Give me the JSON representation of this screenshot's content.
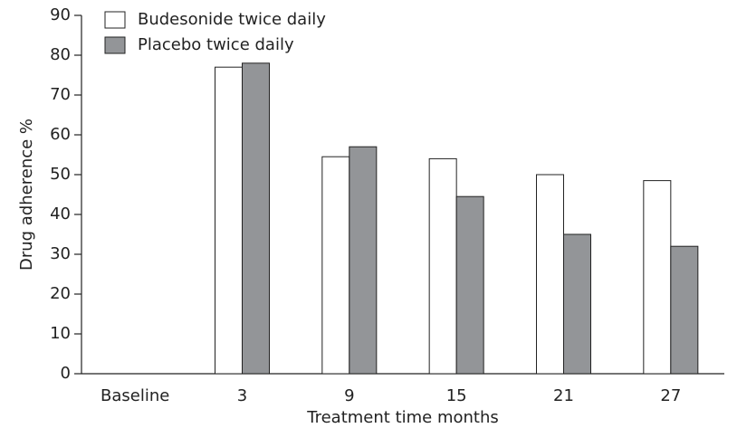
{
  "chart_data": {
    "type": "bar",
    "x_label": "Treatment time months",
    "y_label": "Drug adherence %",
    "categories": [
      "Baseline",
      "3",
      "9",
      "15",
      "21",
      "27"
    ],
    "series": [
      {
        "name": "Budesonide twice daily",
        "color": "#ffffff",
        "values": [
          null,
          77,
          54.5,
          54,
          50,
          48.5
        ]
      },
      {
        "name": "Placebo twice daily",
        "color": "#939598",
        "values": [
          null,
          78,
          57,
          44.5,
          35,
          32
        ]
      }
    ],
    "ylim": [
      0,
      90
    ],
    "yticks": [
      0,
      10,
      20,
      30,
      40,
      50,
      60,
      70,
      80,
      90
    ],
    "legend": "upper-left",
    "grid": false
  }
}
